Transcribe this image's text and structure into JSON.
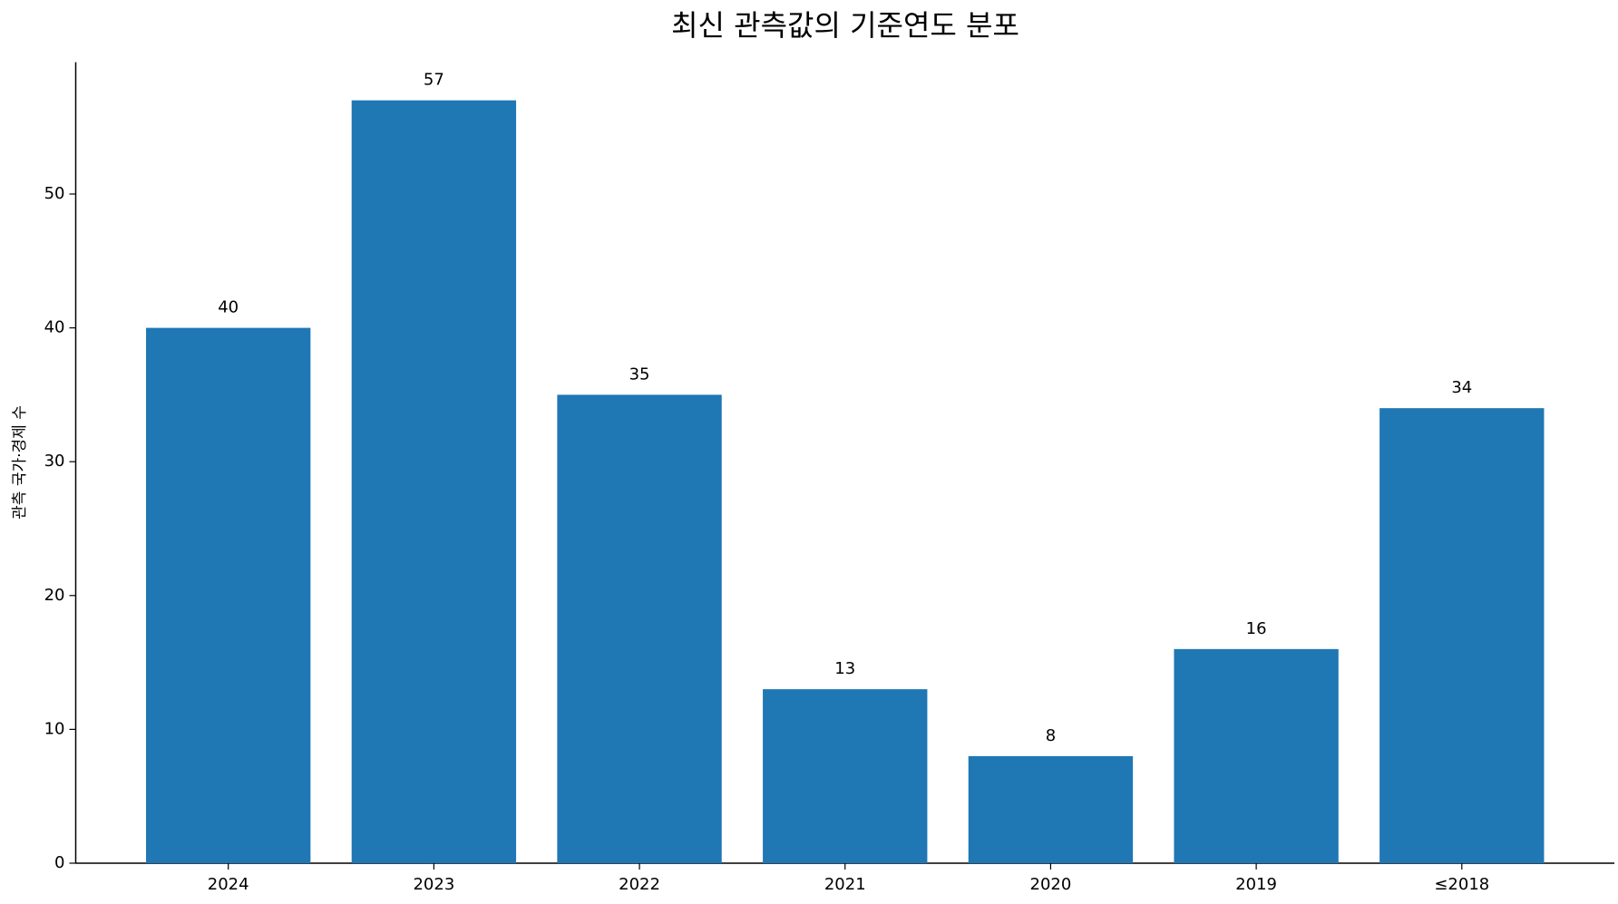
{
  "chart_data": {
    "type": "bar",
    "title": "최신 관측값의 기준연도 분포",
    "y_label": "관측 국가·경제 수",
    "categories": [
      "2024",
      "2023",
      "2022",
      "2021",
      "2020",
      "2019",
      "≤2018"
    ],
    "values": [
      40,
      57,
      35,
      13,
      8,
      16,
      34
    ],
    "color": "#1f77b4",
    "ylim": [
      0,
      59.85
    ],
    "yticks": [
      0,
      10,
      20,
      30,
      40,
      50
    ],
    "grid": false
  }
}
